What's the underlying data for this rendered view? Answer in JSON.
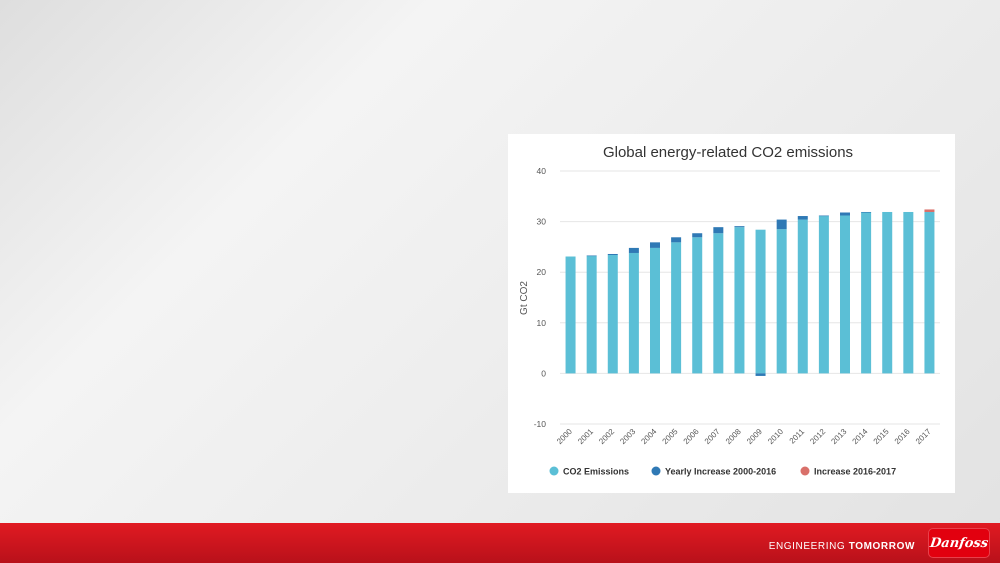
{
  "chart_data": {
    "type": "bar",
    "stacked": true,
    "title": "Global energy-related CO2 emissions",
    "xlabel": "",
    "ylabel": "Gt CO2",
    "ylim": [
      -10,
      40
    ],
    "yticks": [
      "40",
      "30",
      "20",
      "10",
      "0",
      "-10"
    ],
    "ytick_values": [
      40,
      30,
      20,
      10,
      0,
      -10
    ],
    "grid": true,
    "legend_position": "bottom",
    "categories": [
      "2000",
      "2001",
      "2002",
      "2003",
      "2004",
      "2005",
      "2006",
      "2007",
      "2008",
      "2009",
      "2010",
      "2011",
      "2012",
      "2013",
      "2014",
      "2015",
      "2016",
      "2017"
    ],
    "series": [
      {
        "name": "CO2 Emissions",
        "color": "#5bbfd6",
        "values": [
          23.1,
          23.2,
          23.4,
          23.8,
          24.8,
          25.9,
          26.9,
          27.7,
          28.9,
          28.4,
          28.5,
          30.4,
          31.1,
          31.2,
          31.8,
          31.9,
          31.9,
          31.9
        ]
      },
      {
        "name": "Yearly Increase 2000-2016",
        "color": "#2f79b5",
        "values": [
          0,
          0.1,
          0.2,
          1.0,
          1.1,
          1.0,
          0.8,
          1.2,
          0.2,
          -0.5,
          1.9,
          0.7,
          0.1,
          0.6,
          0.1,
          0,
          0,
          0
        ]
      },
      {
        "name": "Increase 2016-2017",
        "color": "#d9706a",
        "values": [
          0,
          0,
          0,
          0,
          0,
          0,
          0,
          0,
          0,
          0,
          0,
          0,
          0,
          0,
          0,
          0,
          0,
          0.5
        ]
      }
    ]
  },
  "footer": {
    "tagline_light": "ENGINEERING",
    "tagline_bold": "TOMORROW",
    "logo_text": "Danfoss",
    "bar_color": "#c8141e"
  }
}
